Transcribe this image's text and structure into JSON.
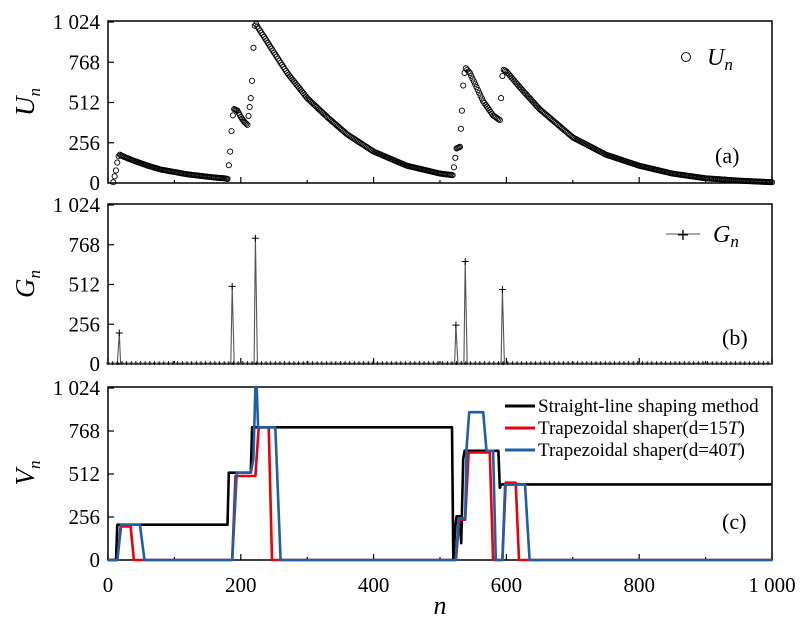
{
  "chart_data": [
    {
      "panel": "a",
      "type": "scatter",
      "ylabel": "U",
      "ylabel_sub": "n",
      "panel_label": "(a)",
      "ylim": [
        0,
        1024
      ],
      "yticks": [
        "0",
        "256",
        "512",
        "768",
        "1 024"
      ],
      "xlim": [
        0,
        1000
      ],
      "grid": false,
      "legend": "top-right",
      "series": [
        {
          "name": "U",
          "name_sub": "n",
          "marker": "open-circle",
          "x": [
            8,
            12,
            14,
            16,
            18,
            20,
            25,
            40,
            60,
            80,
            100,
            120,
            140,
            160,
            175,
            180,
            184,
            186,
            188,
            190,
            195,
            200,
            205,
            210,
            215,
            217,
            219,
            221,
            223,
            225,
            235,
            250,
            270,
            300,
            330,
            360,
            400,
            450,
            500,
            519,
            521,
            523,
            525,
            530,
            533,
            535,
            537,
            539,
            545,
            555,
            565,
            580,
            590,
            592,
            594,
            596,
            600,
            620,
            650,
            700,
            750,
            800,
            850,
            900,
            950,
            1000
          ],
          "y": [
            5,
            80,
            130,
            170,
            180,
            175,
            165,
            140,
            110,
            85,
            70,
            55,
            45,
            35,
            30,
            26,
            200,
            330,
            430,
            470,
            460,
            420,
            390,
            370,
            540,
            650,
            860,
            1000,
            1010,
            995,
            930,
            830,
            700,
            540,
            420,
            310,
            200,
            110,
            60,
            50,
            100,
            160,
            220,
            230,
            460,
            620,
            700,
            730,
            700,
            610,
            520,
            430,
            400,
            540,
            680,
            720,
            710,
            610,
            470,
            290,
            180,
            110,
            60,
            30,
            15,
            5
          ]
        }
      ]
    },
    {
      "panel": "b",
      "type": "line",
      "ylabel": "G",
      "ylabel_sub": "n",
      "panel_label": "(b)",
      "ylim": [
        0,
        1024
      ],
      "yticks": [
        "0",
        "256",
        "512",
        "768",
        "1 024"
      ],
      "xlim": [
        0,
        1000
      ],
      "grid": false,
      "legend": "top-right",
      "series": [
        {
          "name": "G",
          "name_sub": "n",
          "marker": "plus",
          "x": [
            0,
            14,
            17,
            19,
            180,
            185,
            187,
            190,
            215,
            220,
            222,
            225,
            518,
            522,
            524,
            527,
            532,
            536,
            538,
            541,
            588,
            592,
            594,
            597,
            1000
          ],
          "y": [
            0,
            0,
            200,
            0,
            0,
            0,
            500,
            0,
            0,
            0,
            810,
            0,
            0,
            0,
            250,
            0,
            0,
            0,
            660,
            0,
            0,
            0,
            480,
            0,
            0
          ]
        }
      ]
    },
    {
      "panel": "c",
      "type": "line",
      "ylabel": "V",
      "ylabel_sub": "n",
      "panel_label": "(c)",
      "xlabel": "n",
      "ylim": [
        0,
        1024
      ],
      "yticks": [
        "0",
        "256",
        "512",
        "768",
        "1 024"
      ],
      "xlim": [
        0,
        1000
      ],
      "xticks": [
        "0",
        "200",
        "400",
        "600",
        "800",
        "1 000"
      ],
      "grid": false,
      "legend": "top-right",
      "series": [
        {
          "name": "Straight-line shaping method",
          "name_tail": "",
          "color": "#000000",
          "x": [
            0,
            12,
            14,
            180,
            182,
            215,
            217,
            518,
            520,
            523,
            525,
            530,
            532,
            535,
            537,
            588,
            590,
            592,
            1000
          ],
          "y": [
            0,
            0,
            210,
            210,
            520,
            520,
            790,
            790,
            0,
            200,
            260,
            260,
            100,
            600,
            650,
            650,
            430,
            450,
            450
          ]
        },
        {
          "name": "Trapezoidal shaper(d=15",
          "name_tail": ")",
          "color": "#e8000b",
          "x": [
            0,
            14,
            19,
            34,
            39,
            187,
            192,
            207,
            222,
            227,
            242,
            247,
            524,
            529,
            538,
            543,
            575,
            580,
            594,
            599,
            614,
            619,
            1000
          ],
          "y": [
            0,
            0,
            200,
            200,
            0,
            0,
            500,
            500,
            500,
            790,
            790,
            0,
            0,
            240,
            240,
            640,
            640,
            0,
            0,
            460,
            460,
            0,
            0
          ]
        },
        {
          "name": "Trapezoidal shaper(d=40",
          "name_tail": ")",
          "color": "#1f5fa8",
          "x": [
            0,
            14,
            20,
            48,
            55,
            187,
            194,
            215,
            219,
            222,
            224,
            226,
            252,
            260,
            524,
            528,
            530,
            538,
            540,
            544,
            547,
            565,
            570,
            572,
            580,
            584,
            588,
            594,
            598,
            628,
            635,
            1000
          ],
          "y": [
            0,
            0,
            210,
            210,
            0,
            0,
            520,
            520,
            600,
            1030,
            1030,
            790,
            790,
            0,
            0,
            240,
            250,
            250,
            670,
            880,
            880,
            880,
            650,
            650,
            650,
            0,
            0,
            0,
            450,
            450,
            0,
            0
          ]
        }
      ],
      "legend_unit": "T"
    }
  ]
}
